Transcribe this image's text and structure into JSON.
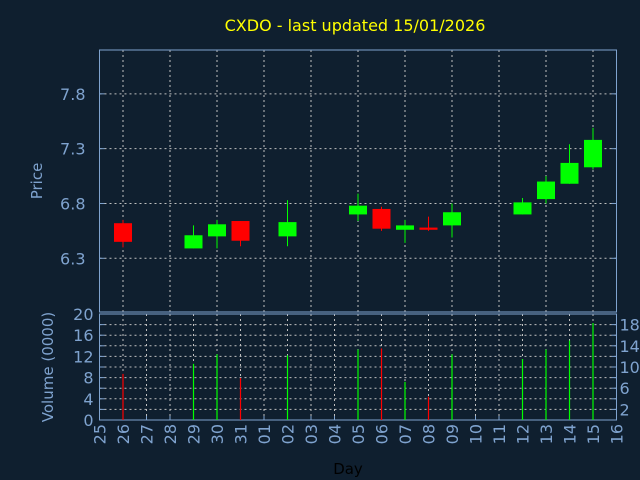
{
  "chart_data": {
    "type": "candlestick",
    "title": "CXDO - last updated 15/01/2026",
    "xlabel": "Day",
    "ylabel": "Price",
    "volume_label": "Volume (0000)",
    "x_ticks": [
      "25",
      "26",
      "27",
      "28",
      "29",
      "30",
      "31",
      "01",
      "02",
      "03",
      "04",
      "05",
      "06",
      "07",
      "08",
      "09",
      "10",
      "11",
      "12",
      "13",
      "14",
      "15",
      "16"
    ],
    "y_ticks": [
      6.3,
      6.8,
      7.3,
      7.8
    ],
    "ylim": [
      5.81,
      8.2
    ],
    "volume_ticks": [
      0,
      2,
      4,
      6,
      8,
      10,
      12,
      14,
      16,
      18,
      20
    ],
    "volume_lim": [
      0,
      20
    ],
    "grid": true,
    "candles": [
      {
        "day": "26",
        "open": 6.62,
        "high": 6.65,
        "low": 6.4,
        "close": 6.45,
        "volume": 8.7
      },
      {
        "day": "29",
        "open": 6.39,
        "high": 6.6,
        "low": 6.39,
        "close": 6.51,
        "volume": 10.6
      },
      {
        "day": "30",
        "open": 6.5,
        "high": 6.65,
        "low": 6.39,
        "close": 6.61,
        "volume": 12.4
      },
      {
        "day": "31",
        "open": 6.64,
        "high": 6.64,
        "low": 6.41,
        "close": 6.46,
        "volume": 7.9
      },
      {
        "day": "02",
        "open": 6.5,
        "high": 6.83,
        "low": 6.41,
        "close": 6.63,
        "volume": 12.2
      },
      {
        "day": "05",
        "open": 6.7,
        "high": 6.89,
        "low": 6.64,
        "close": 6.78,
        "volume": 13.3
      },
      {
        "day": "06",
        "open": 6.75,
        "high": 6.77,
        "low": 6.55,
        "close": 6.57,
        "volume": 13.5
      },
      {
        "day": "07",
        "open": 6.56,
        "high": 6.65,
        "low": 6.44,
        "close": 6.6,
        "volume": 7.2
      },
      {
        "day": "08",
        "open": 6.58,
        "high": 6.68,
        "low": 6.55,
        "close": 6.56,
        "volume": 4.4
      },
      {
        "day": "09",
        "open": 6.6,
        "high": 6.8,
        "low": 6.49,
        "close": 6.72,
        "volume": 12.4
      },
      {
        "day": "12",
        "open": 6.7,
        "high": 6.85,
        "low": 6.7,
        "close": 6.81,
        "volume": 11.5
      },
      {
        "day": "13",
        "open": 6.84,
        "high": 7.05,
        "low": 6.8,
        "close": 7.0,
        "volume": 13.3
      },
      {
        "day": "14",
        "open": 6.98,
        "high": 7.34,
        "low": 6.98,
        "close": 7.17,
        "volume": 15.0
      },
      {
        "day": "15",
        "open": 7.13,
        "high": 7.49,
        "low": 7.11,
        "close": 7.38,
        "volume": 18.3
      }
    ],
    "colors": {
      "up": "#00ff00",
      "down": "#ff0000",
      "title": "#ffff00",
      "axis": "#7fa3cf",
      "grid": "#c0c0c0",
      "background": "#0f1f2f"
    }
  }
}
